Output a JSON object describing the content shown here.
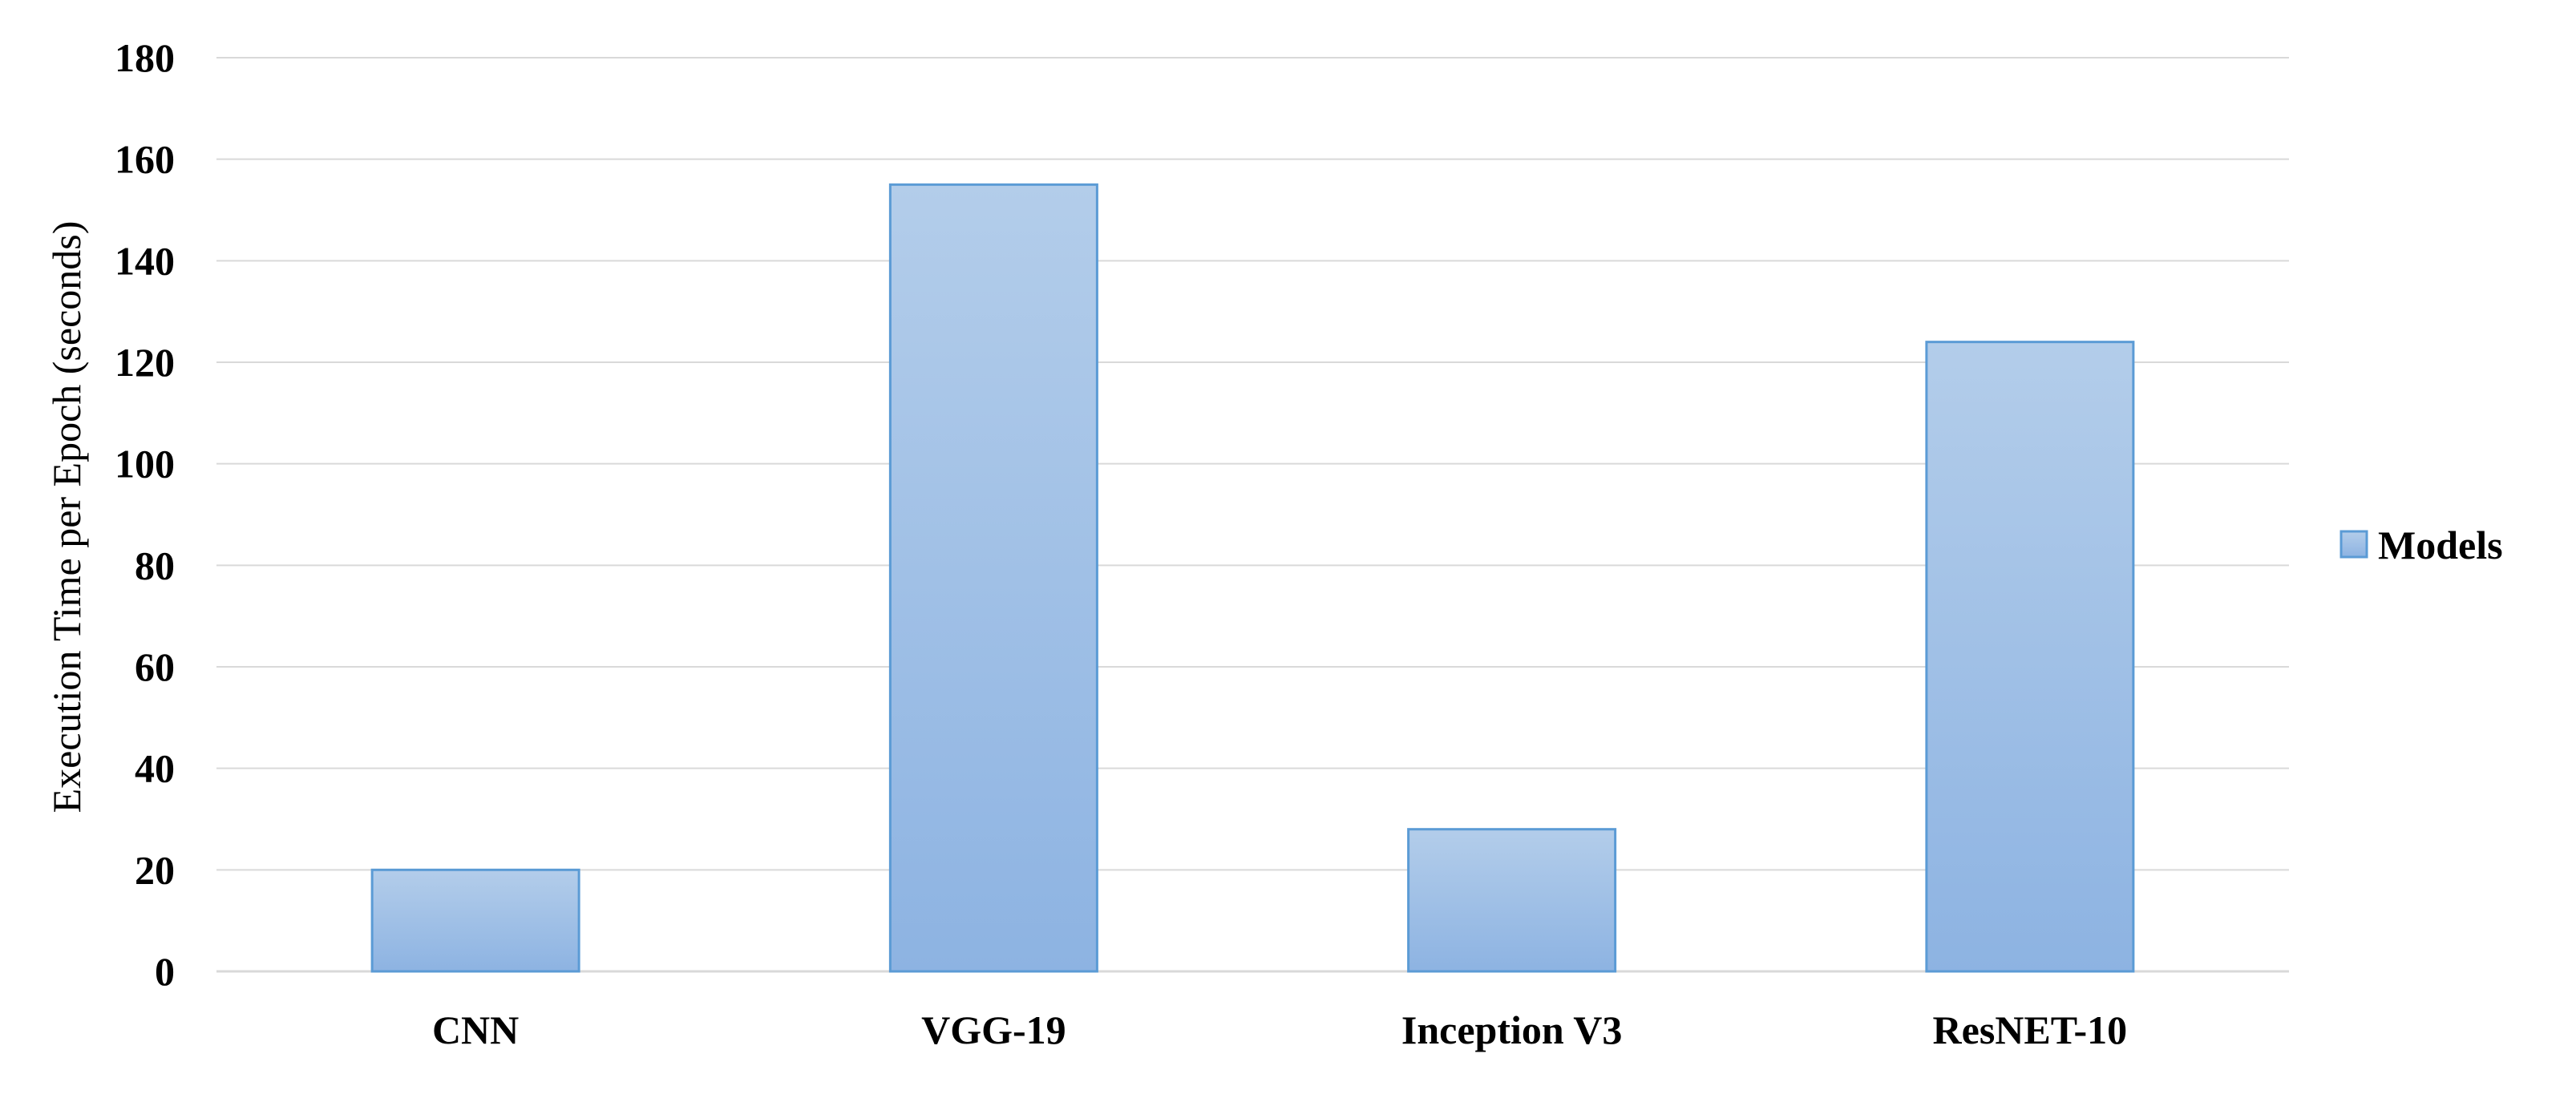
{
  "chart_data": {
    "type": "bar",
    "categories": [
      "CNN",
      "VGG-19",
      "Inception V3",
      "ResNET-10"
    ],
    "series": [
      {
        "name": "Models",
        "values": [
          20,
          155,
          28,
          124
        ]
      }
    ],
    "title": "",
    "xlabel": "",
    "ylabel": "Execution Time per Epoch (seconds)",
    "ylim": [
      0,
      180
    ],
    "yticks": [
      "0",
      "20",
      "40",
      "60",
      "80",
      "100",
      "120",
      "140",
      "160",
      "180"
    ],
    "grid": true,
    "legend_position": "right",
    "colors": {
      "bar_top": "#b3cdea",
      "bar_bottom": "#8db3e2",
      "bar_edge": "#5b9bd5"
    }
  }
}
